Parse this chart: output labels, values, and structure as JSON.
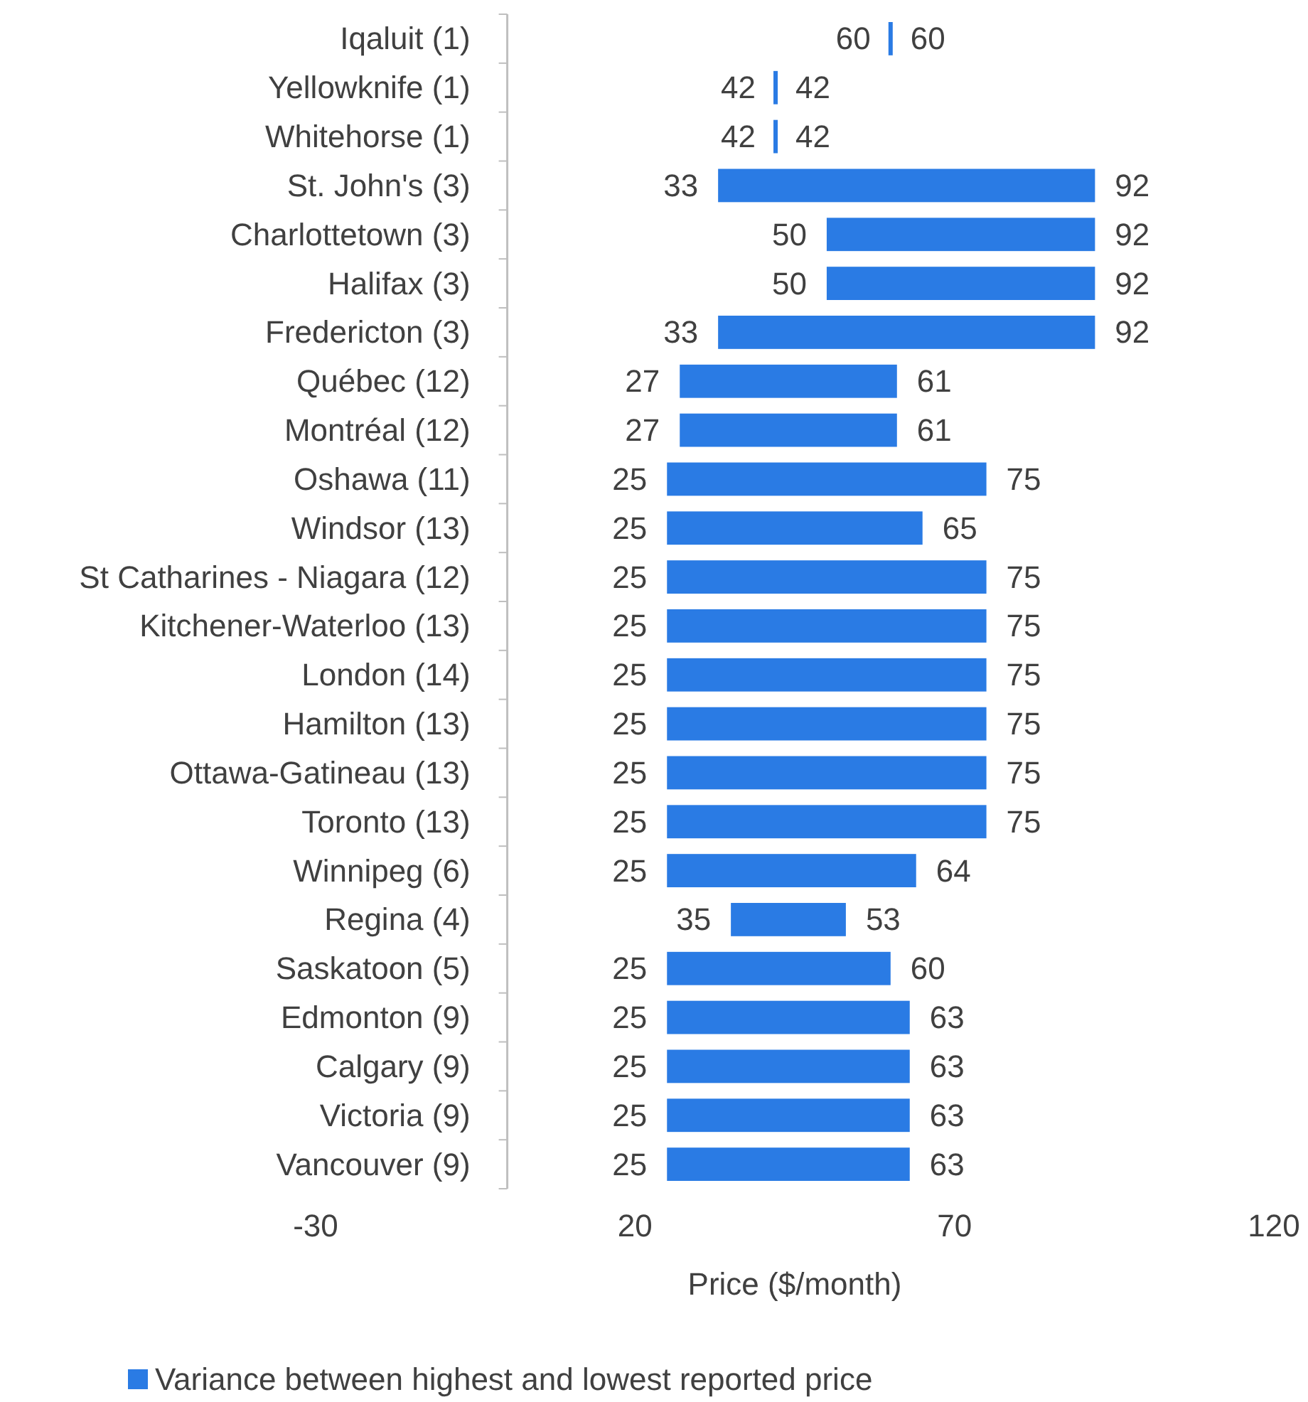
{
  "chart_data": {
    "type": "bar",
    "orientation": "horizontal",
    "xlabel": "Price ($/month)",
    "categories": [
      "Iqaluit (1)",
      "Yellowknife (1)",
      "Whitehorse (1)",
      "St. John's (3)",
      "Charlottetown (3)",
      "Halifax (3)",
      "Fredericton (3)",
      "Québec (12)",
      "Montréal (12)",
      "Oshawa (11)",
      "Windsor (13)",
      "St Catharines - Niagara (12)",
      "Kitchener-Waterloo (13)",
      "London (14)",
      "Hamilton (13)",
      "Ottawa-Gatineau (13)",
      "Toronto (13)",
      "Winnipeg (6)",
      "Regina (4)",
      "Saskatoon (5)",
      "Edmonton (9)",
      "Calgary (9)",
      "Victoria (9)",
      "Vancouver (9)"
    ],
    "series": [
      {
        "name": "Variance between highest and lowest reported price",
        "color": "#2a7be4",
        "base": [
          60,
          42,
          42,
          33,
          50,
          50,
          33,
          27,
          27,
          25,
          25,
          25,
          25,
          25,
          25,
          25,
          25,
          25,
          35,
          25,
          25,
          25,
          25,
          25
        ],
        "values": [
          0,
          0,
          0,
          59,
          42,
          42,
          59,
          34,
          34,
          50,
          40,
          50,
          50,
          50,
          50,
          50,
          50,
          39,
          18,
          35,
          38,
          38,
          38,
          38
        ]
      }
    ],
    "xlim": [
      -30,
      120
    ],
    "xticks": [
      -30,
      20,
      70,
      120
    ],
    "legend": "bottom",
    "annotations": [
      {
        "text": "60",
        "x": 60,
        "y": "Iqaluit (1)"
      },
      {
        "text": "60",
        "x": 60,
        "y": "Iqaluit (1)"
      },
      {
        "text": "42",
        "x": 42,
        "y": "Yellowknife (1)"
      },
      {
        "text": "42",
        "x": 42,
        "y": "Yellowknife (1)"
      },
      {
        "text": "42",
        "x": 42,
        "y": "Whitehorse (1)"
      },
      {
        "text": "42",
        "x": 42,
        "y": "Whitehorse (1)"
      },
      {
        "text": "33",
        "x": 33,
        "y": "St. John's (3)"
      },
      {
        "text": "92",
        "x": 92,
        "y": "St. John's (3)"
      },
      {
        "text": "50",
        "x": 50,
        "y": "Charlottetown (3)"
      },
      {
        "text": "92",
        "x": 92,
        "y": "Charlottetown (3)"
      },
      {
        "text": "50",
        "x": 50,
        "y": "Halifax (3)"
      },
      {
        "text": "92",
        "x": 92,
        "y": "Halifax (3)"
      },
      {
        "text": "33",
        "x": 33,
        "y": "Fredericton (3)"
      },
      {
        "text": "92",
        "x": 92,
        "y": "Fredericton (3)"
      },
      {
        "text": "27",
        "x": 27,
        "y": "Québec (12)"
      },
      {
        "text": "61",
        "x": 61,
        "y": "Québec (12)"
      },
      {
        "text": "27",
        "x": 27,
        "y": "Montréal (12)"
      },
      {
        "text": "61",
        "x": 61,
        "y": "Montréal (12)"
      },
      {
        "text": "25",
        "x": 25,
        "y": "Oshawa (11)"
      },
      {
        "text": "75",
        "x": 75,
        "y": "Oshawa (11)"
      },
      {
        "text": "25",
        "x": 25,
        "y": "Windsor (13)"
      },
      {
        "text": "65",
        "x": 65,
        "y": "Windsor (13)"
      },
      {
        "text": "25",
        "x": 25,
        "y": "St Catharines - Niagara (12)"
      },
      {
        "text": "75",
        "x": 75,
        "y": "St Catharines - Niagara (12)"
      },
      {
        "text": "25",
        "x": 25,
        "y": "Kitchener-Waterloo (13)"
      },
      {
        "text": "75",
        "x": 75,
        "y": "Kitchener-Waterloo (13)"
      },
      {
        "text": "25",
        "x": 25,
        "y": "London (14)"
      },
      {
        "text": "75",
        "x": 75,
        "y": "London (14)"
      },
      {
        "text": "25",
        "x": 25,
        "y": "Hamilton (13)"
      },
      {
        "text": "75",
        "x": 75,
        "y": "Hamilton (13)"
      },
      {
        "text": "25",
        "x": 25,
        "y": "Ottawa-Gatineau (13)"
      },
      {
        "text": "75",
        "x": 75,
        "y": "Ottawa-Gatineau (13)"
      },
      {
        "text": "25",
        "x": 25,
        "y": "Toronto (13)"
      },
      {
        "text": "75",
        "x": 75,
        "y": "Toronto (13)"
      },
      {
        "text": "25",
        "x": 25,
        "y": "Winnipeg (6)"
      },
      {
        "text": "64",
        "x": 64,
        "y": "Winnipeg (6)"
      },
      {
        "text": "35",
        "x": 35,
        "y": "Regina (4)"
      },
      {
        "text": "53",
        "x": 53,
        "y": "Regina (4)"
      },
      {
        "text": "25",
        "x": 25,
        "y": "Saskatoon (5)"
      },
      {
        "text": "60",
        "x": 60,
        "y": "Saskatoon (5)"
      },
      {
        "text": "25",
        "x": 25,
        "y": "Edmonton (9)"
      },
      {
        "text": "63",
        "x": 63,
        "y": "Edmonton (9)"
      },
      {
        "text": "25",
        "x": 25,
        "y": "Calgary (9)"
      },
      {
        "text": "63",
        "x": 63,
        "y": "Calgary (9)"
      },
      {
        "text": "25",
        "x": 25,
        "y": "Victoria (9)"
      },
      {
        "text": "63",
        "x": 63,
        "y": "Victoria (9)"
      },
      {
        "text": "25",
        "x": 25,
        "y": "Vancouver (9)"
      },
      {
        "text": "63",
        "x": 63,
        "y": "Vancouver (9)"
      }
    ]
  }
}
